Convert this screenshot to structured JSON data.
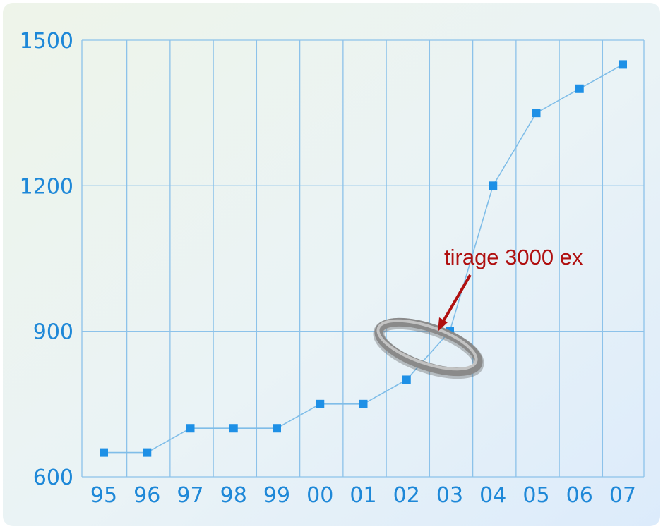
{
  "chart_data": {
    "type": "line",
    "title": "",
    "xlabel": "",
    "ylabel": "",
    "categories": [
      "95",
      "96",
      "97",
      "98",
      "99",
      "00",
      "01",
      "02",
      "03",
      "04",
      "05",
      "06",
      "07"
    ],
    "series": [
      {
        "values": [
          650,
          650,
          700,
          700,
          700,
          750,
          750,
          800,
          900,
          1200,
          1350,
          1400,
          1450
        ]
      }
    ],
    "ylim": [
      600,
      1500
    ],
    "yticks": [
      600,
      900,
      1200,
      1500
    ],
    "grid": true,
    "annotation": {
      "text": "tirage 3000 ex",
      "category": "03",
      "value": 900
    },
    "colors": {
      "marker": "#1e90e6",
      "line": "#7fbde8",
      "grid": "#8cc2ea",
      "tick_text": "#1e88d8",
      "annotation": "#b01010",
      "ring": "#8a8a8a"
    }
  }
}
